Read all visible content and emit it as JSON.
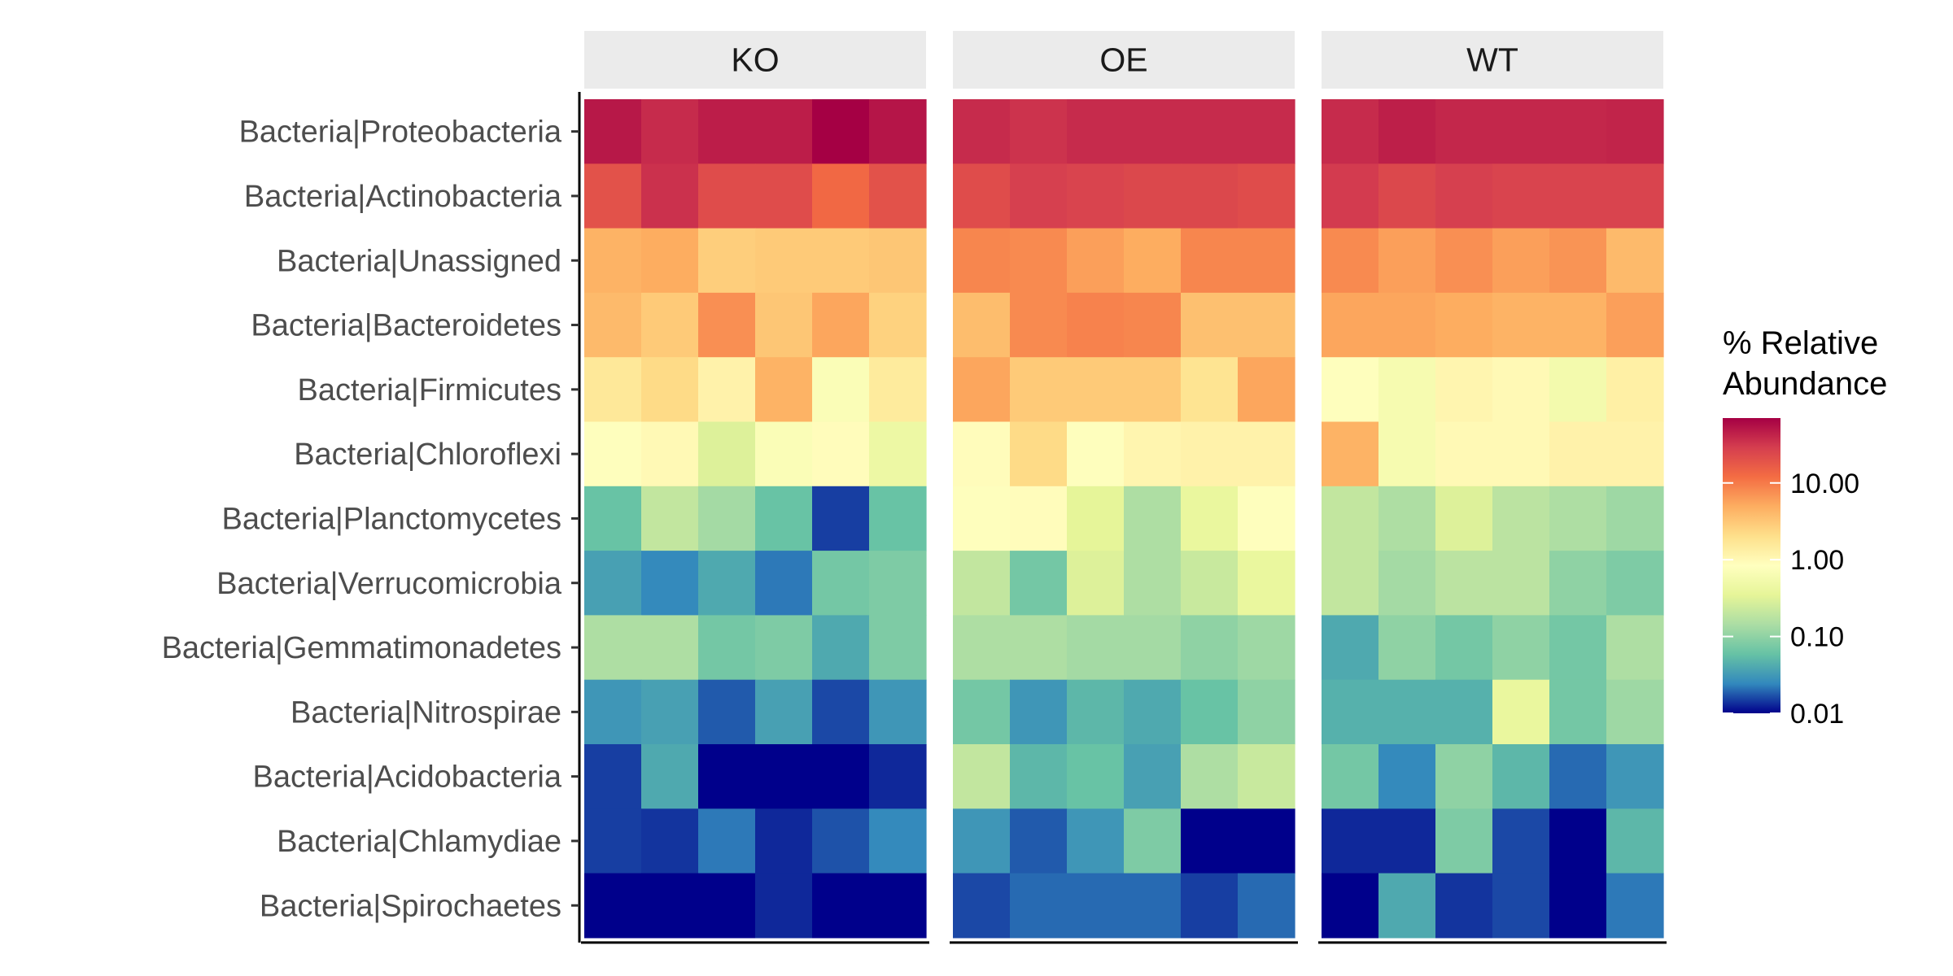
{
  "chart_data": {
    "type": "heatmap",
    "facets": [
      "KO",
      "OE",
      "WT"
    ],
    "rows": [
      "Bacteria|Proteobacteria",
      "Bacteria|Actinobacteria",
      "Bacteria|Unassigned",
      "Bacteria|Bacteroidetes",
      "Bacteria|Firmicutes",
      "Bacteria|Chloroflexi",
      "Bacteria|Planctomycetes",
      "Bacteria|Verrucomicrobia",
      "Bacteria|Gemmatimonadetes",
      "Bacteria|Nitrospirae",
      "Bacteria|Acidobacteria",
      "Bacteria|Chlamydiae",
      "Bacteria|Spirochaetes"
    ],
    "samples_per_facet": 6,
    "values": {
      "KO": [
        [
          50,
          38,
          46,
          46,
          70,
          52
        ],
        [
          20,
          35,
          22,
          22,
          13,
          20
        ],
        [
          4.5,
          5.0,
          2.8,
          3.0,
          3.0,
          3.2
        ],
        [
          4.0,
          3.0,
          7.5,
          3.2,
          5.5,
          2.6
        ],
        [
          1.6,
          2.2,
          1.2,
          4.5,
          0.7,
          1.5
        ],
        [
          0.8,
          1.0,
          0.3,
          0.7,
          0.9,
          0.45
        ],
        [
          0.06,
          0.2,
          0.13,
          0.06,
          0.015,
          0.06
        ],
        [
          0.035,
          0.025,
          0.04,
          0.022,
          0.07,
          0.08
        ],
        [
          0.15,
          0.15,
          0.07,
          0.08,
          0.04,
          0.08
        ],
        [
          0.03,
          0.035,
          0.018,
          0.035,
          0.016,
          0.03
        ],
        [
          0.015,
          0.04,
          0.01,
          0.01,
          0.01,
          0.013
        ],
        [
          0.015,
          0.014,
          0.022,
          0.013,
          0.017,
          0.025
        ],
        [
          0.01,
          0.01,
          0.01,
          0.013,
          0.01,
          0.01
        ]
      ],
      "OE": [
        [
          38,
          34,
          38,
          38,
          38,
          38
        ],
        [
          22,
          28,
          26,
          24,
          24,
          22
        ],
        [
          8.5,
          8.0,
          6.0,
          5.0,
          8.5,
          8.5
        ],
        [
          3.8,
          8.0,
          9.0,
          8.5,
          3.6,
          3.6
        ],
        [
          5.5,
          3.0,
          3.0,
          3.0,
          1.8,
          5.5
        ],
        [
          0.9,
          2.2,
          0.8,
          1.1,
          1.2,
          1.2
        ],
        [
          0.8,
          0.9,
          0.35,
          0.15,
          0.4,
          0.8
        ],
        [
          0.2,
          0.07,
          0.3,
          0.15,
          0.22,
          0.4
        ],
        [
          0.15,
          0.15,
          0.13,
          0.13,
          0.1,
          0.12
        ],
        [
          0.07,
          0.03,
          0.05,
          0.04,
          0.06,
          0.1
        ],
        [
          0.2,
          0.05,
          0.06,
          0.035,
          0.15,
          0.22
        ],
        [
          0.03,
          0.018,
          0.03,
          0.08,
          0.01,
          0.01
        ],
        [
          0.016,
          0.02,
          0.02,
          0.02,
          0.015,
          0.02
        ]
      ],
      "WT": [
        [
          38,
          45,
          40,
          40,
          40,
          42
        ],
        [
          30,
          24,
          28,
          26,
          26,
          26
        ],
        [
          8.0,
          6.0,
          7.5,
          6.0,
          7.0,
          4.0
        ],
        [
          5.5,
          5.5,
          5.0,
          4.5,
          4.5,
          6.0
        ],
        [
          0.8,
          0.6,
          1.1,
          1.0,
          0.55,
          1.3
        ],
        [
          4.5,
          0.6,
          1.0,
          1.0,
          1.2,
          1.2
        ],
        [
          0.2,
          0.15,
          0.3,
          0.18,
          0.15,
          0.12
        ],
        [
          0.2,
          0.13,
          0.18,
          0.18,
          0.1,
          0.08
        ],
        [
          0.04,
          0.1,
          0.07,
          0.1,
          0.07,
          0.15
        ],
        [
          0.045,
          0.045,
          0.045,
          0.4,
          0.07,
          0.12
        ],
        [
          0.07,
          0.025,
          0.1,
          0.05,
          0.02,
          0.03
        ],
        [
          0.013,
          0.013,
          0.08,
          0.016,
          0.01,
          0.05
        ],
        [
          0.01,
          0.04,
          0.014,
          0.016,
          0.01,
          0.022
        ]
      ]
    },
    "scale": "log10",
    "color_range": [
      0.01,
      70
    ],
    "palette": [
      "#00008b",
      "#3288bd",
      "#66c2a5",
      "#abdda4",
      "#e6f598",
      "#ffffbf",
      "#fee08b",
      "#fdae61",
      "#f46d43",
      "#d53e4f",
      "#a50044"
    ],
    "legend": {
      "title_lines": [
        "% Relative",
        "Abundance"
      ],
      "ticks": [
        0.01,
        0.1,
        1,
        10
      ],
      "tick_labels": [
        "0.01",
        "0.10",
        "1.00",
        "10.00"
      ],
      "placement": "right"
    },
    "strip_background": "#ebebeb",
    "axis_color": "#000000"
  }
}
